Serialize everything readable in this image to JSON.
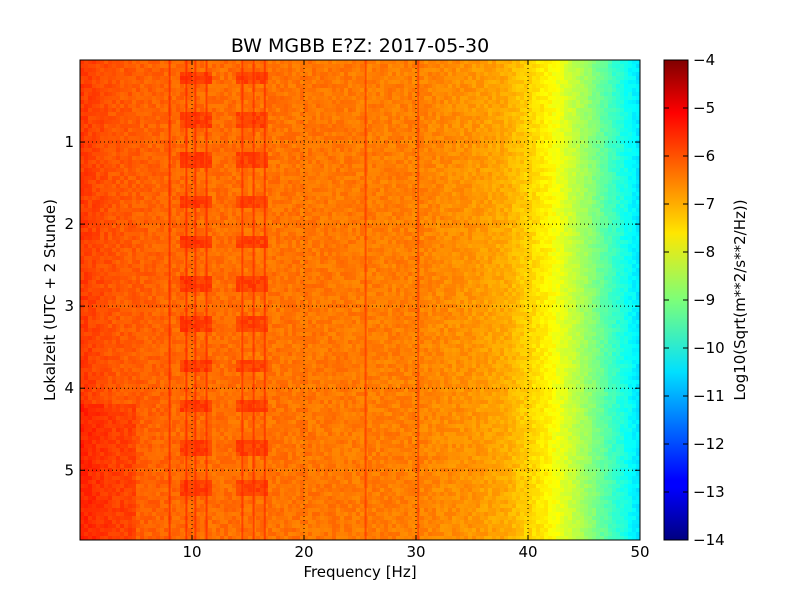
{
  "chart_data": {
    "type": "heatmap",
    "title": "BW MGBB E?Z: 2017-05-30",
    "xlabel": "Frequency [Hz]",
    "ylabel": "Lokalzeit (UTC + 2 Stunde)",
    "xlim": [
      0,
      50
    ],
    "ylim": [
      5.85,
      0
    ],
    "x_ticks": [
      10,
      20,
      30,
      40,
      50
    ],
    "x_tick_labels": [
      "10",
      "20",
      "30",
      "40",
      "50"
    ],
    "y_ticks": [
      1,
      2,
      3,
      4,
      5
    ],
    "y_tick_labels": [
      "1",
      "2",
      "3",
      "4",
      "5"
    ],
    "grid": true,
    "colormap": "jet",
    "colorbar": {
      "label": "Log10(Sqrt(m**2/s**2/Hz))",
      "range": [
        -14,
        -4
      ],
      "ticks": [
        -4,
        -5,
        -6,
        -7,
        -8,
        -9,
        -10,
        -11,
        -12,
        -13,
        -14
      ],
      "tick_labels": [
        "−4",
        "−5",
        "−6",
        "−7",
        "−8",
        "−9",
        "−10",
        "−11",
        "−12",
        "−13",
        "−14"
      ]
    },
    "spectral_profile": {
      "freq_hz": [
        0,
        3,
        6,
        10,
        20,
        30,
        35,
        38,
        40,
        42,
        44,
        46,
        48,
        50
      ],
      "level": [
        -5.8,
        -6.1,
        -6.2,
        -6.3,
        -6.4,
        -6.5,
        -6.7,
        -6.9,
        -7.3,
        -7.7,
        -8.3,
        -9.0,
        -9.8,
        -10.5
      ]
    },
    "spectral_lines_hz": [
      8.0,
      9.5,
      10.3,
      11.3,
      14.5,
      15.5,
      16.5,
      25.5,
      30.2
    ],
    "banded_features": {
      "freq_bands_hz": [
        [
          9.0,
          11.8
        ],
        [
          14.0,
          16.8
        ]
      ],
      "time_hours": [
        0.22,
        0.73,
        1.22,
        1.73,
        2.22,
        2.73,
        3.22,
        3.73,
        4.22,
        4.73,
        5.22
      ]
    }
  }
}
